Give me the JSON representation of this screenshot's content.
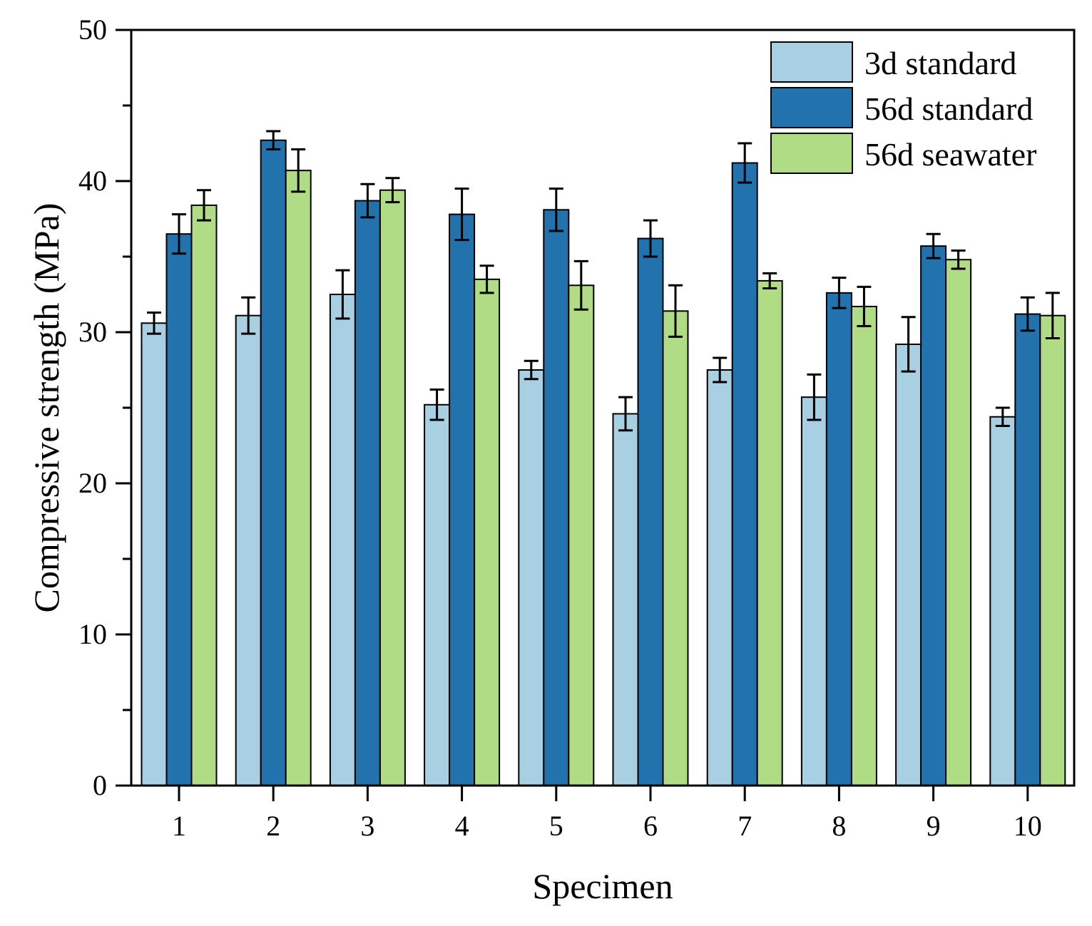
{
  "chart_data": {
    "type": "bar",
    "title": "",
    "xlabel": "Specimen",
    "ylabel": "Compressive strength (MPa)",
    "ylim": [
      0,
      50
    ],
    "yticks": [
      0,
      10,
      20,
      30,
      40,
      50
    ],
    "categories": [
      "1",
      "2",
      "3",
      "4",
      "5",
      "6",
      "7",
      "8",
      "9",
      "10"
    ],
    "legend_position": "top-right",
    "series": [
      {
        "name": "3d standard",
        "color": "#a9cfe2",
        "values": [
          30.6,
          31.1,
          32.5,
          25.2,
          27.5,
          24.6,
          27.5,
          25.7,
          29.2,
          24.4
        ],
        "errors": [
          0.7,
          1.2,
          1.6,
          1.0,
          0.6,
          1.1,
          0.8,
          1.5,
          1.8,
          0.6
        ]
      },
      {
        "name": "56d standard",
        "color": "#2273ad",
        "values": [
          36.5,
          42.7,
          38.7,
          37.8,
          38.1,
          36.2,
          41.2,
          32.6,
          35.7,
          31.2
        ],
        "errors": [
          1.3,
          0.6,
          1.1,
          1.7,
          1.4,
          1.2,
          1.3,
          1.0,
          0.8,
          1.1
        ]
      },
      {
        "name": "56d seawater",
        "color": "#b0dc85",
        "values": [
          38.4,
          40.7,
          39.4,
          33.5,
          33.1,
          31.4,
          33.4,
          31.7,
          34.8,
          31.1
        ],
        "errors": [
          1.0,
          1.4,
          0.8,
          0.9,
          1.6,
          1.7,
          0.5,
          1.3,
          0.6,
          1.5
        ]
      }
    ]
  }
}
